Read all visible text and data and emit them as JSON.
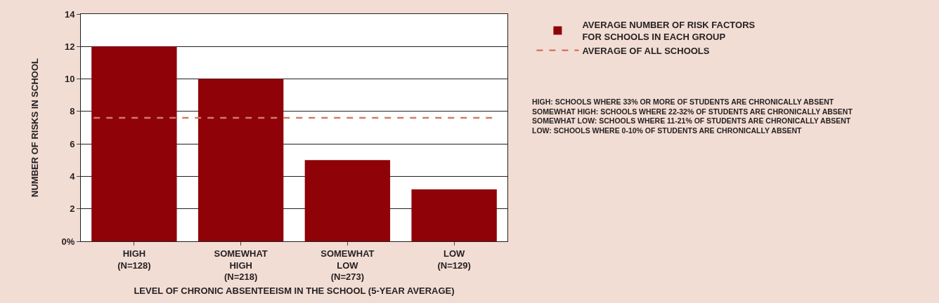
{
  "chart_data": {
    "type": "bar",
    "xlabel": "LEVEL OF CHRONIC ABSENTEEISM IN THE SCHOOL (5-YEAR AVERAGE)",
    "ylabel": "NUMBER OF RISKS IN SCHOOL",
    "categories": [
      "HIGH\n(N=128)",
      "SOMEWHAT\nHIGH\n(N=218)",
      "SOMEWHAT\nLOW\n(N=273)",
      "LOW\n(N=129)"
    ],
    "series": [
      {
        "name": "AVERAGE NUMBER OF RISK FACTORS\nFOR SCHOOLS IN EACH GROUP",
        "color": "#8f0208",
        "values": [
          12.0,
          10.0,
          5.0,
          3.2
        ]
      }
    ],
    "ylim": [
      0,
      14
    ],
    "yticks": [
      {
        "value": 0,
        "label": "0%"
      },
      2,
      4,
      6,
      8,
      10,
      12,
      14
    ],
    "grid": "y",
    "legend": "right",
    "ref_lines": [
      {
        "axis": "y",
        "value": 7.6,
        "label": "AVERAGE OF ALL SCHOOLS",
        "color": "#d47a66",
        "line_style": "dashed"
      }
    ],
    "annotations": [
      "HIGH: SCHOOLS WHERE 33% OR MORE OF STUDENTS ARE CHRONICALLY ABSENT\nSOMEWHAT HIGH: SCHOOLS WHERE 22-32% OF STUDENTS ARE CHRONICALLY ABSENT\nSOMEWHAT LOW: SCHOOLS WHERE 11-21% OF STUDENTS ARE CHRONICALLY ABSENT\nLOW: SCHOOLS WHERE 0-10% OF STUDENTS ARE CHRONICALLY ABSENT"
    ]
  }
}
